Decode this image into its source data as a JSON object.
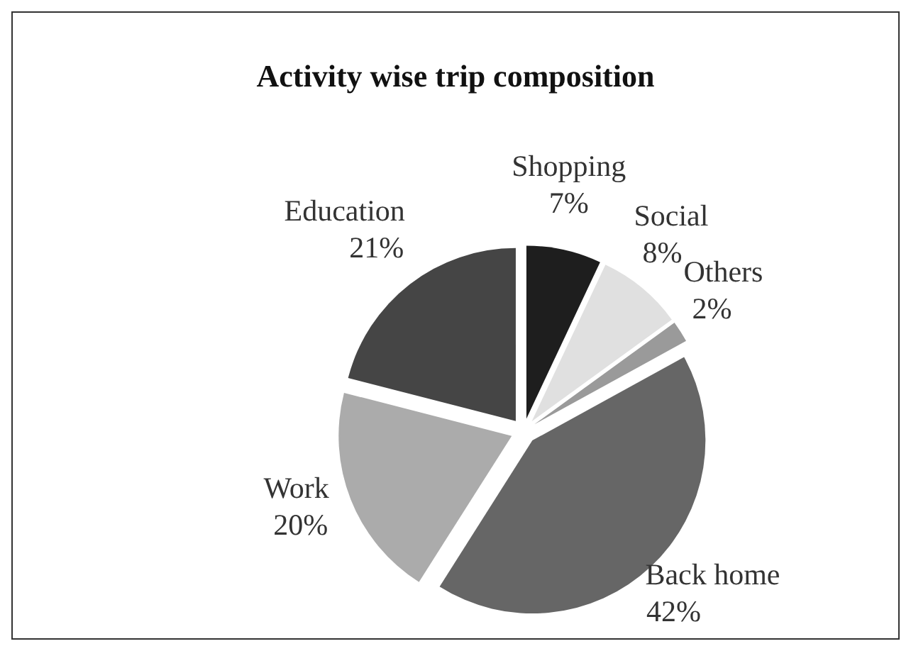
{
  "chart_data": {
    "type": "pie",
    "title": "Activity wise trip composition",
    "categories": [
      "Shopping",
      "Social",
      "Others",
      "Back home",
      "Work",
      "Education"
    ],
    "values": [
      7,
      8,
      2,
      42,
      20,
      21
    ],
    "colors": [
      "#1e1e1e",
      "#e0e0e0",
      "#9a9a9a",
      "#666666",
      "#ababab",
      "#454545"
    ],
    "value_labels": [
      "7%",
      "8%",
      "2%",
      "42%",
      "20%",
      "21%"
    ]
  }
}
